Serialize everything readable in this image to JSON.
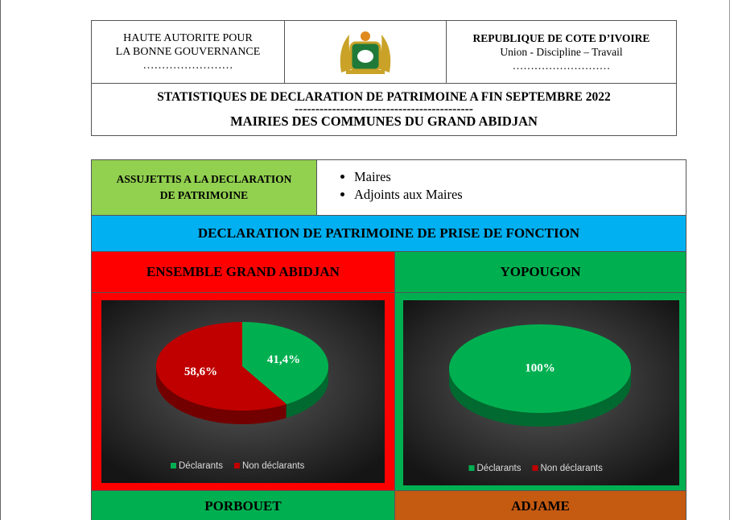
{
  "header": {
    "authority": [
      "HAUTE AUTORITE POUR",
      "LA BONNE GOUVERNANCE",
      "……………………"
    ],
    "republic": {
      "name": "REPUBLIQUE DE COTE D’IVOIRE",
      "motto": "Union - Discipline – Travail",
      "dots": "………………………"
    },
    "title": "STATISTIQUES DE DECLARATION DE PATRIMOINE A FIN SEPTEMBRE 2022",
    "separator": "-------------------------------------------",
    "subtitle": "MAIRIES DES COMMUNES DU GRAND ABIDJAN"
  },
  "subjects": {
    "label": [
      "ASSUJETTIS A LA DECLARATION",
      "DE PATRIMOINE"
    ],
    "items": [
      "Maires",
      "Adjoints aux Maires"
    ]
  },
  "section": "DECLARATION DE PATRIMOINE DE PRISE DE FONCTION",
  "chart_data": [
    {
      "type": "pie",
      "title": "ENSEMBLE GRAND ABIDJAN",
      "categories": [
        "Déclarants",
        "Non déclarants"
      ],
      "colors": [
        "#00b050",
        "#c00000"
      ],
      "values": [
        41.4,
        58.6
      ],
      "value_labels": [
        "41,4%",
        "58,6%"
      ]
    },
    {
      "type": "pie",
      "title": "YOPOUGON",
      "categories": [
        "Déclarants",
        "Non déclarants"
      ],
      "colors": [
        "#00b050",
        "#c00000"
      ],
      "values": [
        100,
        0
      ],
      "value_labels": [
        "100%",
        null
      ]
    }
  ],
  "next_sections": [
    "PORBOUET",
    "ADJAME"
  ]
}
